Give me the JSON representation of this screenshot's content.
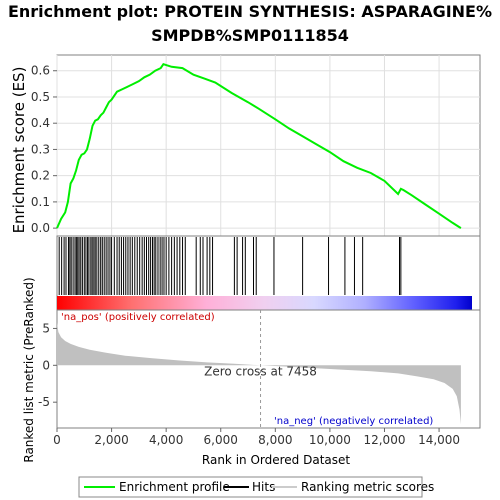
{
  "title_line1": "Enrichment plot: PROTEIN SYNTHESIS: ASPARAGINE%",
  "title_line2": "SMPDB%SMP0111854",
  "chart_data": {
    "type": "line",
    "title": "Enrichment plot: PROTEIN SYNTHESIS: ASPARAGINE% SMPDB%SMP0111854",
    "top_panel": {
      "ylabel": "Enrichment score (ES)",
      "ylim": [
        -0.03,
        0.66
      ],
      "yticks": [
        0.0,
        0.1,
        0.2,
        0.3,
        0.4,
        0.5,
        0.6
      ],
      "ytick_labels": [
        "0.0",
        "0.1",
        "0.2",
        "0.3",
        "0.4",
        "0.5",
        "0.6"
      ],
      "grid": true,
      "series": [
        {
          "name": "Enrichment profile",
          "color": "#00ee00",
          "x": [
            0,
            150,
            300,
            400,
            500,
            600,
            700,
            800,
            900,
            1000,
            1100,
            1200,
            1300,
            1400,
            1500,
            1600,
            1700,
            1800,
            1900,
            2000,
            2200,
            2400,
            2600,
            2800,
            3000,
            3200,
            3400,
            3600,
            3800,
            3900,
            4200,
            4600,
            5000,
            5400,
            5800,
            6400,
            7000,
            7400,
            8000,
            8500,
            9000,
            9500,
            10000,
            10500,
            11000,
            11500,
            12000,
            12500,
            12600,
            12700,
            13000,
            13500,
            14000,
            14500,
            14800
          ],
          "y": [
            0.0,
            0.035,
            0.06,
            0.1,
            0.17,
            0.19,
            0.22,
            0.26,
            0.28,
            0.285,
            0.3,
            0.34,
            0.39,
            0.41,
            0.415,
            0.43,
            0.44,
            0.46,
            0.48,
            0.49,
            0.52,
            0.53,
            0.54,
            0.55,
            0.56,
            0.575,
            0.585,
            0.6,
            0.61,
            0.625,
            0.615,
            0.61,
            0.585,
            0.57,
            0.555,
            0.515,
            0.48,
            0.455,
            0.415,
            0.38,
            0.35,
            0.32,
            0.29,
            0.255,
            0.23,
            0.21,
            0.18,
            0.13,
            0.15,
            0.145,
            0.125,
            0.09,
            0.055,
            0.02,
            0.0
          ]
        }
      ]
    },
    "hits_panel": {
      "hit_ranks": [
        80,
        170,
        260,
        330,
        420,
        470,
        520,
        590,
        660,
        710,
        760,
        810,
        870,
        930,
        1000,
        1060,
        1120,
        1170,
        1240,
        1290,
        1350,
        1400,
        1460,
        1530,
        1600,
        1660,
        1730,
        1800,
        1870,
        1940,
        2000,
        2100,
        2200,
        2280,
        2360,
        2440,
        2520,
        2600,
        2680,
        2760,
        2850,
        2940,
        3030,
        3120,
        3200,
        3280,
        3360,
        3430,
        3500,
        3560,
        3620,
        3700,
        3780,
        3850,
        3920,
        4000,
        4100,
        4200,
        4300,
        4400,
        4500,
        4600,
        4700,
        5100,
        5250,
        5350,
        5500,
        5600,
        5700,
        6500,
        6600,
        6800,
        6900,
        7200,
        7300,
        7950,
        9000,
        9950,
        10550,
        10900,
        11200,
        12550,
        12600
      ]
    },
    "bottom_panel": {
      "ylabel": "Ranked list metric (PreRanked)",
      "xlabel": "Rank in Ordered Dataset",
      "ylim": [
        -8.5,
        7.5
      ],
      "yticks": [
        -5,
        0,
        5
      ],
      "ytick_labels": [
        "-5",
        "0",
        "5"
      ],
      "xlim": [
        0,
        15500
      ],
      "xticks": [
        0,
        2000,
        4000,
        6000,
        8000,
        10000,
        12000,
        14000
      ],
      "xtick_labels": [
        "0",
        "2,000",
        "4,000",
        "6,000",
        "8,000",
        "10,000",
        "12,000",
        "14,000"
      ],
      "metric_x": [
        0,
        50,
        150,
        300,
        500,
        800,
        1200,
        1800,
        2500,
        3500,
        4500,
        5500,
        6500,
        7458,
        8500,
        9500,
        10500,
        11500,
        12500,
        13200,
        13800,
        14200,
        14500,
        14650,
        14750,
        14800
      ],
      "metric_y": [
        5.8,
        4.5,
        3.8,
        3.3,
        2.9,
        2.5,
        2.1,
        1.7,
        1.3,
        0.95,
        0.65,
        0.4,
        0.2,
        0.0,
        -0.2,
        -0.4,
        -0.6,
        -0.8,
        -1.1,
        -1.5,
        -1.9,
        -2.4,
        -3.2,
        -4.2,
        -6.0,
        -8.0
      ],
      "zero_cross_label": "Zero cross at 7458",
      "zero_cross_rank": 7458,
      "pos_label": "'na_pos' (positively correlated)",
      "neg_label": "'na_neg' (negatively correlated)"
    },
    "total_ranks": 14800,
    "legend": {
      "placement": "bottom",
      "items": [
        {
          "label": "Enrichment profile",
          "color": "#00ee00",
          "kind": "line"
        },
        {
          "label": "Hits",
          "color": "#000000",
          "kind": "line"
        },
        {
          "label": "Ranking metric scores",
          "color": "#cccccc",
          "kind": "line"
        }
      ]
    }
  }
}
